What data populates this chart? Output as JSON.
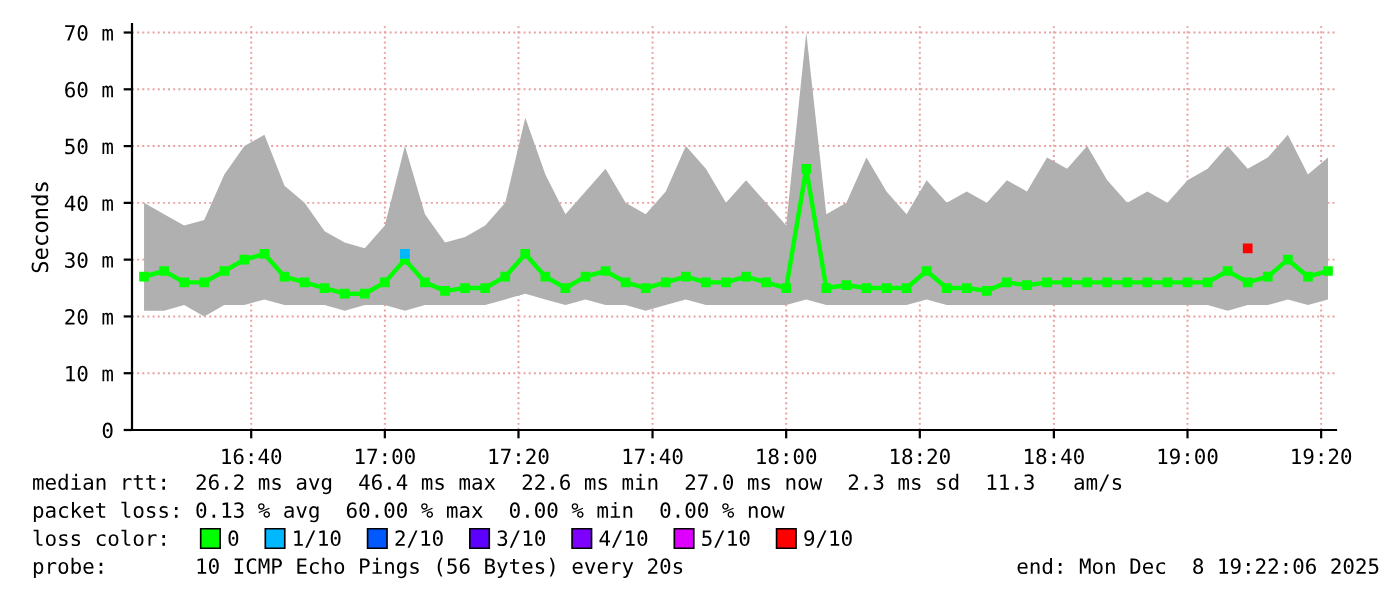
{
  "chart_data": {
    "type": "line",
    "ylabel": "Seconds",
    "x": [
      16.4,
      16.45,
      16.5,
      16.55,
      16.6,
      16.65,
      16.7,
      16.75,
      16.8,
      16.85,
      16.9,
      16.95,
      17.0,
      17.05,
      17.1,
      17.15,
      17.2,
      17.25,
      17.3,
      17.35,
      17.4,
      17.45,
      17.5,
      17.55,
      17.6,
      17.65,
      17.7,
      17.75,
      17.8,
      17.85,
      17.9,
      17.95,
      18.0,
      18.05,
      18.1,
      18.15,
      18.2,
      18.25,
      18.3,
      18.35,
      18.4,
      18.45,
      18.5,
      18.55,
      18.6,
      18.65,
      18.7,
      18.75,
      18.8,
      18.85,
      18.9,
      18.95,
      19.0,
      19.05,
      19.1,
      19.15,
      19.2,
      19.25,
      19.3,
      19.35
    ],
    "series": [
      {
        "name": "0",
        "color": "#00ff00",
        "values": [
          27,
          28,
          26,
          26,
          28,
          30,
          31,
          27,
          26,
          25,
          24,
          24,
          26,
          30,
          26,
          24.5,
          25,
          25,
          27,
          31,
          27,
          25,
          27,
          28,
          26,
          25,
          26,
          27,
          26,
          26,
          27,
          26,
          25,
          46,
          25,
          25.5,
          25,
          25,
          25,
          28,
          25,
          25,
          24.5,
          26,
          25.5,
          26,
          26,
          26,
          26,
          26,
          26,
          26,
          26,
          26,
          28,
          26,
          27,
          30,
          27,
          28
        ],
        "lower": [
          21,
          21,
          22,
          20,
          22,
          22,
          23,
          22,
          22,
          22,
          21,
          22,
          22,
          21,
          22,
          22,
          22,
          22,
          23,
          24,
          23,
          22,
          23,
          22,
          22,
          21,
          22,
          23,
          22,
          22,
          22,
          22,
          22,
          23,
          22,
          22,
          22,
          22,
          22,
          23,
          22,
          22,
          22,
          22,
          22,
          22,
          22,
          22,
          22,
          22,
          22,
          22,
          22,
          22,
          21,
          22,
          22,
          23,
          22,
          23
        ],
        "upper": [
          40,
          38,
          36,
          37,
          45,
          50,
          52,
          43,
          40,
          35,
          33,
          32,
          36,
          50,
          38,
          33,
          34,
          36,
          40,
          55,
          45,
          38,
          42,
          46,
          40,
          38,
          42,
          50,
          46,
          40,
          44,
          40,
          36,
          70,
          38,
          40,
          48,
          42,
          38,
          44,
          40,
          42,
          40,
          44,
          42,
          48,
          46,
          50,
          44,
          40,
          42,
          40,
          44,
          46,
          50,
          46,
          48,
          52,
          45,
          48
        ]
      },
      {
        "name": "1/10",
        "color": "#00b8ff",
        "values": [
          null,
          null,
          null,
          null,
          null,
          null,
          null,
          null,
          null,
          null,
          null,
          null,
          null,
          31,
          null,
          null,
          null,
          null,
          null,
          null,
          null,
          null,
          null,
          null,
          null,
          null,
          null,
          null,
          null,
          null,
          null,
          null,
          null,
          null,
          null,
          null,
          null,
          null,
          null,
          null,
          null,
          null,
          null,
          null,
          null,
          null,
          null,
          null,
          null,
          null,
          null,
          null,
          null,
          null,
          null,
          null,
          null,
          null,
          null,
          null
        ]
      },
      {
        "name": "2/10",
        "color": "#0059ff",
        "values": [
          null,
          null,
          null,
          null,
          null,
          null,
          null,
          null,
          null,
          null,
          null,
          null,
          null,
          null,
          null,
          null,
          null,
          null,
          null,
          null,
          null,
          null,
          null,
          null,
          null,
          null,
          null,
          null,
          null,
          null,
          null,
          null,
          null,
          null,
          null,
          null,
          null,
          null,
          null,
          null,
          null,
          null,
          null,
          null,
          null,
          null,
          null,
          null,
          null,
          null,
          null,
          null,
          null,
          null,
          null,
          null,
          null,
          null,
          null,
          null
        ]
      },
      {
        "name": "3/10",
        "color": "#5e00ff",
        "values": [
          null,
          null,
          null,
          null,
          null,
          null,
          null,
          null,
          null,
          null,
          null,
          null,
          null,
          null,
          null,
          null,
          null,
          null,
          null,
          null,
          null,
          null,
          null,
          null,
          null,
          null,
          null,
          null,
          null,
          null,
          null,
          null,
          null,
          null,
          null,
          null,
          null,
          null,
          null,
          null,
          null,
          null,
          null,
          null,
          null,
          null,
          null,
          null,
          null,
          null,
          null,
          null,
          null,
          null,
          null,
          null,
          null,
          null,
          null,
          null
        ]
      },
      {
        "name": "4/10",
        "color": "#7e00ff",
        "values": [
          null,
          null,
          null,
          null,
          null,
          null,
          null,
          null,
          null,
          null,
          null,
          null,
          null,
          null,
          null,
          null,
          null,
          null,
          null,
          null,
          null,
          null,
          null,
          null,
          null,
          null,
          null,
          null,
          null,
          null,
          null,
          null,
          null,
          null,
          null,
          null,
          null,
          null,
          null,
          null,
          null,
          null,
          null,
          null,
          null,
          null,
          null,
          null,
          null,
          null,
          null,
          null,
          null,
          null,
          null,
          null,
          null,
          null,
          null,
          null
        ]
      },
      {
        "name": "5/10",
        "color": "#dd00ff",
        "values": [
          null,
          null,
          null,
          null,
          null,
          null,
          null,
          null,
          null,
          null,
          null,
          null,
          null,
          null,
          null,
          null,
          null,
          null,
          null,
          null,
          null,
          null,
          null,
          null,
          null,
          null,
          null,
          null,
          null,
          null,
          null,
          null,
          null,
          null,
          null,
          null,
          null,
          null,
          null,
          null,
          null,
          null,
          null,
          null,
          null,
          null,
          null,
          null,
          null,
          null,
          null,
          null,
          null,
          null,
          null,
          null,
          null,
          null,
          null,
          null
        ]
      },
      {
        "name": "9/10",
        "color": "#ff0000",
        "values": [
          null,
          null,
          null,
          null,
          null,
          null,
          null,
          null,
          null,
          null,
          null,
          null,
          null,
          null,
          null,
          null,
          null,
          null,
          null,
          null,
          null,
          null,
          null,
          null,
          null,
          null,
          null,
          null,
          null,
          null,
          null,
          null,
          null,
          null,
          null,
          null,
          null,
          null,
          null,
          null,
          null,
          null,
          null,
          null,
          null,
          null,
          null,
          null,
          null,
          null,
          null,
          null,
          null,
          null,
          null,
          32,
          null,
          null,
          null,
          null
        ]
      }
    ],
    "xlim": [
      16.37,
      19.37
    ],
    "xticks": [
      {
        "value": 16.667,
        "label": "16:40"
      },
      {
        "value": 17.0,
        "label": "17:00"
      },
      {
        "value": 17.333,
        "label": "17:20"
      },
      {
        "value": 17.667,
        "label": "17:40"
      },
      {
        "value": 18.0,
        "label": "18:00"
      },
      {
        "value": 18.333,
        "label": "18:20"
      },
      {
        "value": 18.667,
        "label": "18:40"
      },
      {
        "value": 19.0,
        "label": "19:00"
      },
      {
        "value": 19.333,
        "label": "19:20"
      }
    ],
    "ylim": [
      0,
      71.5
    ],
    "yticks": [
      0,
      {
        "value": 10,
        "label": "10 m"
      },
      {
        "value": 20,
        "label": "20 m"
      },
      {
        "value": 30,
        "label": "30 m"
      },
      {
        "value": 40,
        "label": "40 m"
      },
      {
        "value": 50,
        "label": "50 m"
      },
      {
        "value": 60,
        "label": "60 m"
      },
      {
        "value": 70,
        "label": "70 m"
      }
    ],
    "grid": true,
    "marker": "square",
    "legend": "bottom",
    "annotations": [
      "median rtt:  26.2 ms avg  46.4 ms max  22.6 ms min  27.0 ms now  2.3 ms sd  11.3   am/s",
      "packet loss: 0.13 % avg  60.00 % max  0.00 % min  0.00 % now",
      "loss color:",
      "probe:       10 ICMP Echo Pings (56 Bytes) every 20s",
      "end: Mon Dec  8 19:22:06 2025"
    ]
  }
}
